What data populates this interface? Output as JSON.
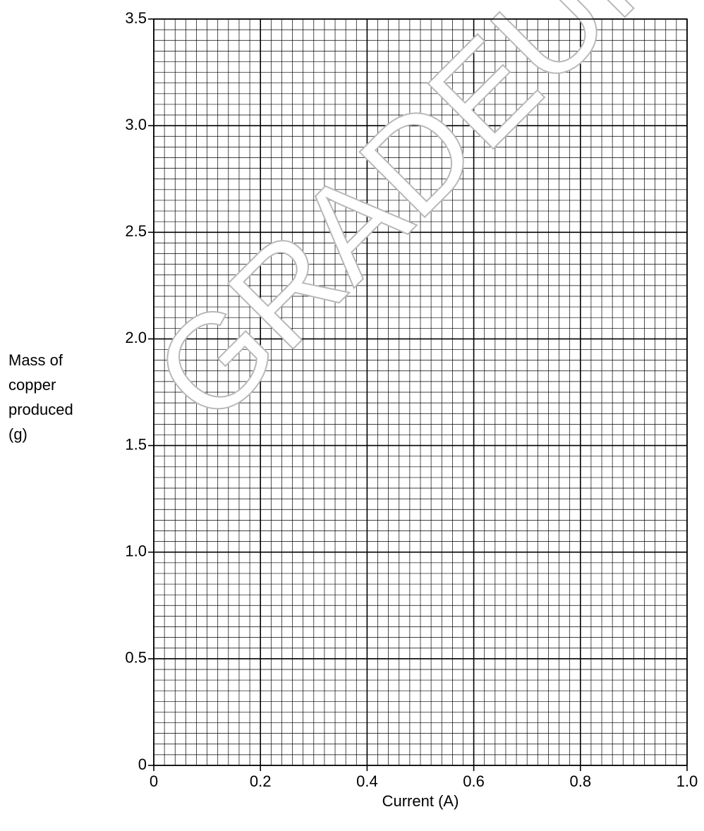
{
  "chart_data": {
    "type": "line",
    "xlabel": "Current (A)",
    "ylabel": [
      "Mass of",
      "copper",
      "produced",
      "(g)"
    ],
    "watermark": "GRADEUP.UK",
    "series": [],
    "xlim": [
      0,
      1
    ],
    "xticks": [
      0,
      0.2,
      0.4,
      0.6,
      0.8,
      {
        "value": 1,
        "label": "1.0"
      }
    ],
    "ylim": [
      0,
      3.5
    ],
    "yticks": [
      0,
      0.5,
      {
        "value": 1,
        "label": "1.0"
      },
      1.5,
      {
        "value": 2,
        "label": "2.0"
      },
      2.5,
      {
        "value": 3,
        "label": "3.0"
      },
      3.5
    ],
    "grid": true
  }
}
